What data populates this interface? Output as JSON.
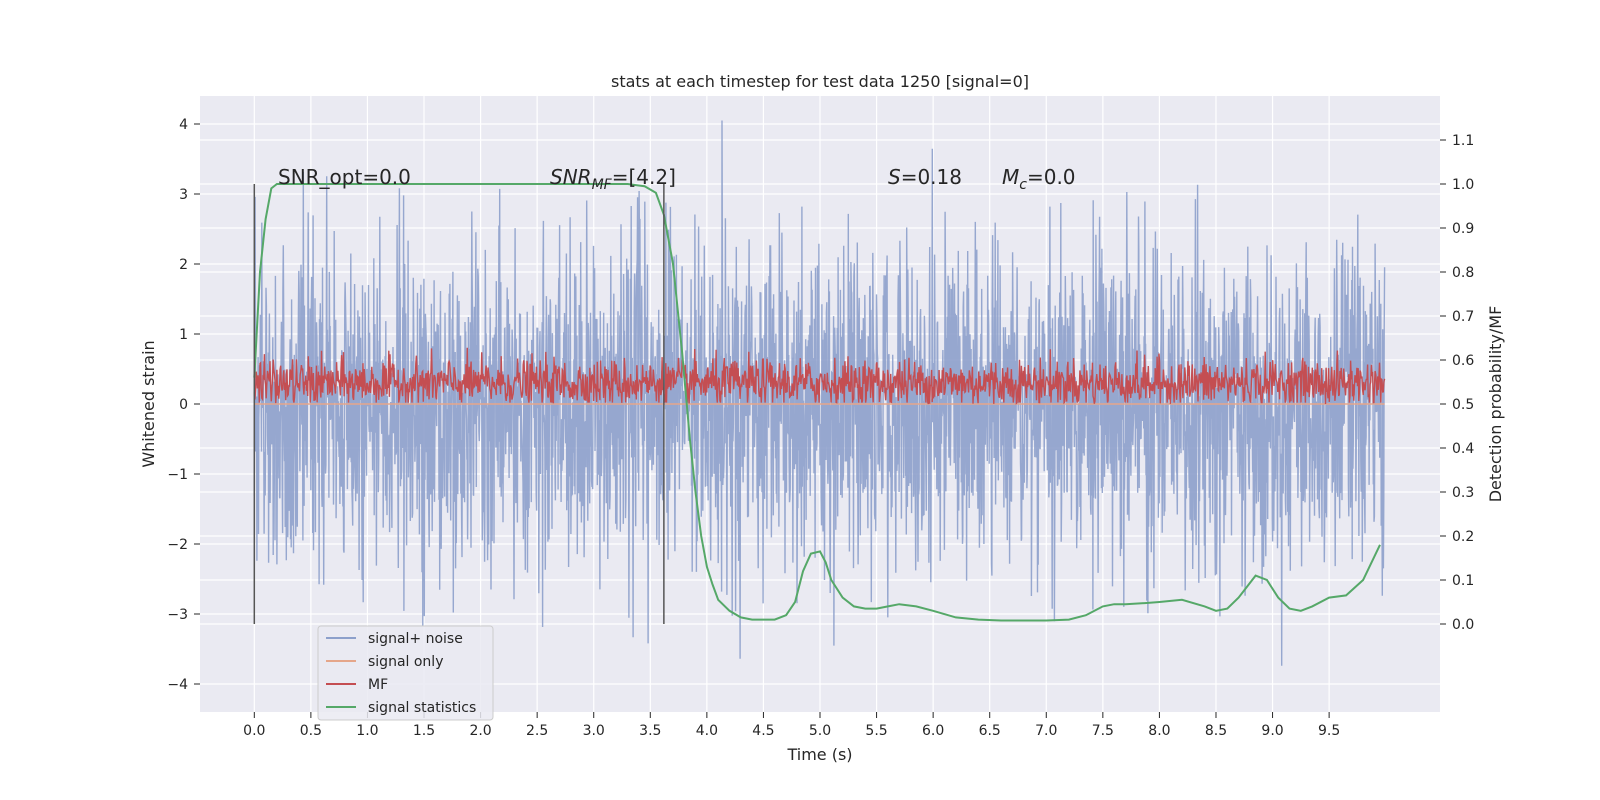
{
  "chart_data": {
    "type": "line",
    "title": "stats at each timestep for test data 1250 [signal=0]",
    "xlabel": "Time (s)",
    "ylabel_left": "Whitened strain",
    "ylabel_right": "Detection probability/MF",
    "xlim": [
      -0.48,
      10.48
    ],
    "ylim_left": [
      -4.4,
      4.4
    ],
    "ylim_right": [
      -0.2,
      1.2
    ],
    "x_ticks": [
      0.0,
      0.5,
      1.0,
      1.5,
      2.0,
      2.5,
      3.0,
      3.5,
      4.0,
      4.5,
      5.0,
      5.5,
      6.0,
      6.5,
      7.0,
      7.5,
      8.0,
      8.5,
      9.0,
      9.5
    ],
    "x_tick_labels": [
      "0.0",
      "0.5",
      "1.0",
      "1.5",
      "2.0",
      "2.5",
      "3.0",
      "3.5",
      "4.0",
      "4.5",
      "5.0",
      "5.5",
      "6.0",
      "6.5",
      "7.0",
      "7.5",
      "8.0",
      "8.5",
      "9.0",
      "9.5"
    ],
    "y_left_ticks": [
      -4,
      -3,
      -2,
      -1,
      0,
      1,
      2,
      3,
      4
    ],
    "y_left_tick_labels": [
      "−4",
      "−3",
      "−2",
      "−1",
      "0",
      "1",
      "2",
      "3",
      "4"
    ],
    "y_right_ticks": [
      0.0,
      0.1,
      0.2,
      0.3,
      0.4,
      0.5,
      0.6,
      0.7,
      0.8,
      0.9,
      1.0,
      1.1
    ],
    "y_right_tick_labels": [
      "0.0",
      "0.1",
      "0.2",
      "0.3",
      "0.4",
      "0.5",
      "0.6",
      "0.7",
      "0.8",
      "0.9",
      "1.0",
      "1.1"
    ],
    "grid": true,
    "legend_position": "bottom-left",
    "series": [
      {
        "name": "signal+ noise",
        "axis": "left",
        "color": "#8da0cb",
        "x_range": [
          0.0,
          9.99
        ],
        "description_values": {
          "typical_range": [
            -2.2,
            2.2
          ],
          "max": 4.05,
          "min": -3.95
        }
      },
      {
        "name": "signal only",
        "axis": "left",
        "color": "#e5a68a",
        "x": [
          0.0,
          9.99
        ],
        "y": [
          0,
          0
        ]
      },
      {
        "name": "MF",
        "axis": "left",
        "color": "#c44e52",
        "x_range": [
          0.0,
          9.99
        ],
        "description_values": {
          "typical_range": [
            0.0,
            0.65
          ],
          "max": 1.0
        }
      },
      {
        "name": "signal statistics",
        "axis": "right",
        "color": "#55a868",
        "x": [
          0.0,
          0.05,
          0.1,
          0.15,
          0.2,
          0.3,
          0.5,
          1.0,
          1.5,
          2.0,
          2.5,
          3.0,
          3.3,
          3.45,
          3.55,
          3.62,
          3.7,
          3.78,
          3.85,
          3.9,
          3.95,
          4.0,
          4.05,
          4.1,
          4.2,
          4.3,
          4.4,
          4.5,
          4.6,
          4.7,
          4.78,
          4.85,
          4.92,
          5.0,
          5.05,
          5.1,
          5.2,
          5.3,
          5.4,
          5.5,
          5.6,
          5.7,
          5.85,
          6.0,
          6.2,
          6.4,
          6.6,
          6.8,
          7.0,
          7.2,
          7.35,
          7.5,
          7.6,
          7.7,
          7.9,
          8.0,
          8.2,
          8.4,
          8.5,
          8.6,
          8.7,
          8.85,
          8.95,
          9.05,
          9.15,
          9.25,
          9.35,
          9.5,
          9.65,
          9.8,
          9.95
        ],
        "y": [
          0.56,
          0.8,
          0.92,
          0.99,
          1.0,
          1.0,
          1.0,
          1.0,
          1.0,
          1.0,
          1.0,
          1.0,
          1.0,
          0.995,
          0.98,
          0.93,
          0.82,
          0.62,
          0.42,
          0.3,
          0.2,
          0.13,
          0.09,
          0.055,
          0.03,
          0.015,
          0.01,
          0.01,
          0.01,
          0.02,
          0.05,
          0.12,
          0.16,
          0.165,
          0.14,
          0.1,
          0.06,
          0.04,
          0.035,
          0.035,
          0.04,
          0.045,
          0.04,
          0.03,
          0.015,
          0.01,
          0.008,
          0.008,
          0.008,
          0.01,
          0.02,
          0.04,
          0.045,
          0.045,
          0.048,
          0.05,
          0.055,
          0.04,
          0.03,
          0.035,
          0.06,
          0.11,
          0.1,
          0.06,
          0.035,
          0.03,
          0.04,
          0.06,
          0.065,
          0.1,
          0.18
        ]
      }
    ],
    "vertical_lines": [
      0.0,
      3.62
    ],
    "annotations": {
      "snr_opt": "SNR_opt=0.0",
      "snr_mf_name": "SNR",
      "snr_mf_sub": "MF",
      "snr_mf_value": "=[4.2]",
      "s_name": "S",
      "s_value": "=0.18",
      "mc_name": "M",
      "mc_sub": "c",
      "mc_value": "=0.0"
    }
  }
}
